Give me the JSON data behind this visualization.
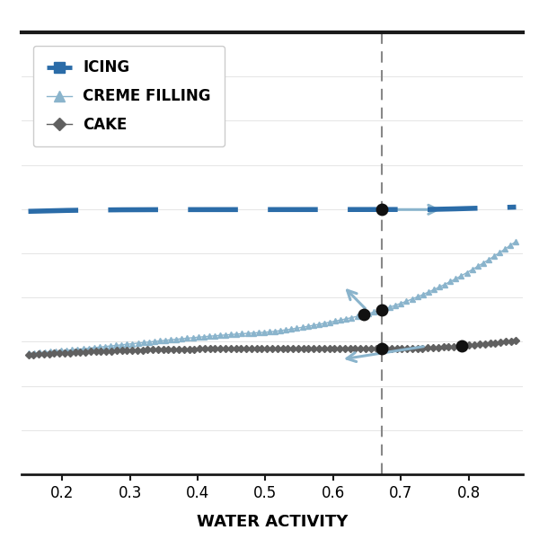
{
  "title": "",
  "xlabel": "WATER ACTIVITY",
  "ylabel": "",
  "xlim": [
    0.14,
    0.88
  ],
  "dashed_line_x": 0.672,
  "background_color": "#ffffff",
  "icing_color": "#2b6ca8",
  "creme_color": "#8ab4cc",
  "cake_color": "#606060",
  "dot_color": "#111111",
  "arrow_color": "#8ab4cc",
  "legend_labels": [
    "ICING",
    "CREME FILLING",
    "CAKE"
  ],
  "xlabel_fontsize": 13,
  "legend_fontsize": 11,
  "xticks": [
    0.2,
    0.3,
    0.4,
    0.5,
    0.6,
    0.7,
    0.8
  ]
}
